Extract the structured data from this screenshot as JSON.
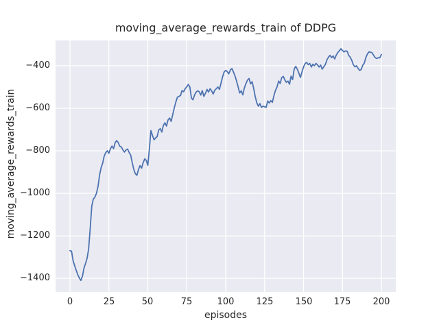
{
  "figure": {
    "background": "#ffffff",
    "axes_background": "#eaeaf2",
    "grid_color": "#ffffff",
    "text_color": "#262626"
  },
  "chart_data": {
    "type": "line",
    "title": "moving_average_rewards_train of DDPG",
    "xlabel": "episodes",
    "ylabel": "moving_average_rewards_train",
    "grid": true,
    "legend": null,
    "style": "seaborn-darkgrid",
    "line_color": "#4c72b0",
    "xlim": [
      -9.25,
      209.25
    ],
    "ylim": [
      -1464,
      -281
    ],
    "xticks": {
      "values": [
        0,
        25,
        50,
        75,
        100,
        125,
        150,
        175,
        200
      ],
      "labels": [
        "0",
        "25",
        "50",
        "75",
        "100",
        "125",
        "150",
        "175",
        "200"
      ]
    },
    "yticks": {
      "values": [
        -400,
        -600,
        -800,
        -1000,
        -1200,
        -1400
      ],
      "labels": [
        "−400",
        "−600",
        "−800",
        "−1000",
        "−1200",
        "−1400"
      ]
    },
    "series": [
      {
        "name": "moving_average_rewards_train",
        "x_start": 0,
        "x_step": 1,
        "values": [
          -1270,
          -1272,
          -1316,
          -1340,
          -1362,
          -1382,
          -1398,
          -1410,
          -1390,
          -1352,
          -1330,
          -1305,
          -1262,
          -1165,
          -1060,
          -1028,
          -1018,
          -1000,
          -968,
          -915,
          -880,
          -858,
          -825,
          -808,
          -800,
          -812,
          -790,
          -778,
          -790,
          -762,
          -752,
          -762,
          -778,
          -782,
          -796,
          -806,
          -796,
          -792,
          -808,
          -820,
          -856,
          -888,
          -908,
          -915,
          -888,
          -870,
          -882,
          -856,
          -838,
          -845,
          -868,
          -790,
          -705,
          -728,
          -748,
          -740,
          -733,
          -702,
          -696,
          -712,
          -680,
          -668,
          -684,
          -655,
          -646,
          -662,
          -630,
          -598,
          -570,
          -548,
          -544,
          -540,
          -517,
          -522,
          -508,
          -500,
          -488,
          -500,
          -552,
          -560,
          -538,
          -524,
          -518,
          -522,
          -538,
          -517,
          -544,
          -530,
          -511,
          -524,
          -508,
          -519,
          -533,
          -515,
          -508,
          -500,
          -511,
          -482,
          -452,
          -430,
          -422,
          -428,
          -438,
          -420,
          -413,
          -430,
          -448,
          -472,
          -500,
          -528,
          -518,
          -537,
          -505,
          -484,
          -468,
          -460,
          -485,
          -475,
          -508,
          -545,
          -575,
          -590,
          -578,
          -596,
          -590,
          -593,
          -596,
          -566,
          -575,
          -564,
          -572,
          -540,
          -516,
          -500,
          -472,
          -483,
          -456,
          -450,
          -467,
          -478,
          -472,
          -487,
          -449,
          -465,
          -415,
          -403,
          -416,
          -435,
          -455,
          -430,
          -406,
          -390,
          -384,
          -395,
          -389,
          -406,
          -393,
          -400,
          -389,
          -396,
          -406,
          -397,
          -416,
          -405,
          -394,
          -373,
          -360,
          -351,
          -362,
          -354,
          -368,
          -350,
          -338,
          -330,
          -320,
          -328,
          -335,
          -330,
          -332,
          -351,
          -360,
          -375,
          -395,
          -405,
          -400,
          -412,
          -422,
          -418,
          -398,
          -388,
          -362,
          -345,
          -335,
          -336,
          -339,
          -351,
          -362,
          -366,
          -362,
          -363,
          -347
        ]
      }
    ]
  }
}
